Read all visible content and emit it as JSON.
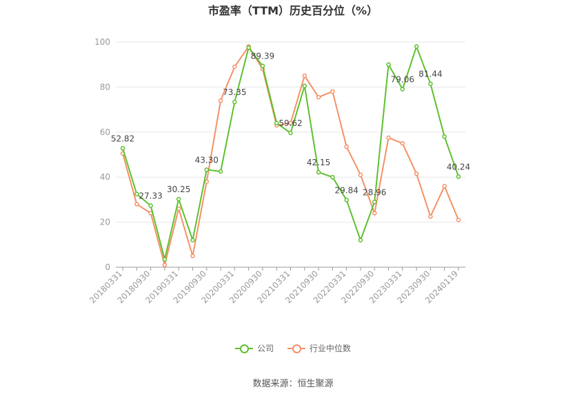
{
  "chart_data": {
    "type": "line",
    "title": "市盈率（TTM）历史百分位（%）",
    "x": [
      "20180331",
      "20180630",
      "20180930",
      "20181231",
      "20190331",
      "20190630",
      "20190930",
      "20191231",
      "20200331",
      "20200630",
      "20200930",
      "20201231",
      "20210331",
      "20210630",
      "20210930",
      "20211231",
      "20220331",
      "20220630",
      "20220930",
      "20221231",
      "20230331",
      "20230630",
      "20230930",
      "20231231",
      "20240119"
    ],
    "x_tick_labels": [
      "20180331",
      "20180930",
      "20190331",
      "20190930",
      "20200331",
      "20200930",
      "20210331",
      "20210930",
      "20220331",
      "20220930",
      "20230331",
      "20230930",
      "20240119"
    ],
    "y_ticks": [
      0,
      20,
      40,
      60,
      80,
      100
    ],
    "ylim": [
      0,
      100
    ],
    "grid": true,
    "legend_position": "bottom",
    "series": [
      {
        "name": "公司",
        "color": "#5cc02c",
        "values": [
          52.82,
          32.5,
          27.33,
          3.5,
          30.25,
          12.0,
          43.3,
          42.5,
          73.35,
          97.5,
          89.39,
          64.0,
          59.62,
          80.5,
          42.15,
          40.0,
          29.84,
          12.0,
          28.96,
          90.0,
          79.06,
          98.0,
          81.44,
          58.0,
          40.24
        ],
        "labels": [
          "52.82",
          "",
          "27.33",
          "",
          "30.25",
          "",
          "43.30",
          "",
          "73.35",
          "",
          "89.39",
          "",
          "59.62",
          "",
          "42.15",
          "",
          "29.84",
          "",
          "28.96",
          "",
          "79.06",
          "",
          "81.44",
          "",
          "40.24"
        ]
      },
      {
        "name": "行业中位数",
        "color": "#f59064",
        "values": [
          50.5,
          28.0,
          24.0,
          1.0,
          26.0,
          5.0,
          38.0,
          74.0,
          89.0,
          98.0,
          88.0,
          63.0,
          64.0,
          85.0,
          75.5,
          78.0,
          53.5,
          41.0,
          24.0,
          57.5,
          55.0,
          41.5,
          22.5,
          36.0,
          21.0
        ],
        "labels": []
      }
    ]
  },
  "legend": {
    "items": [
      {
        "label": "公司",
        "color": "#5cc02c"
      },
      {
        "label": "行业中位数",
        "color": "#f59064"
      }
    ]
  },
  "source": "数据来源：恒生聚源"
}
